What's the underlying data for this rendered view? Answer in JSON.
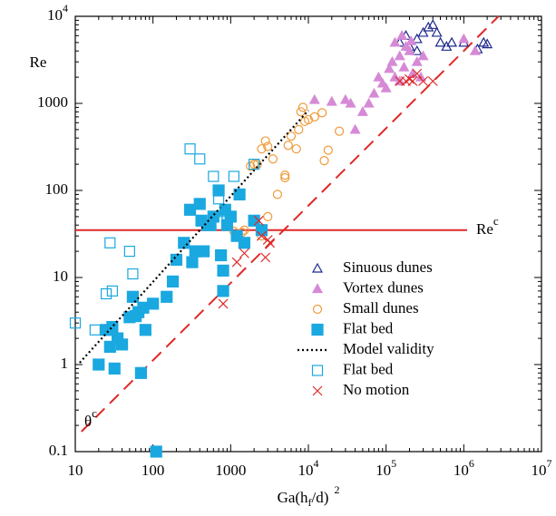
{
  "chart_data": {
    "type": "scatter",
    "x_label": {
      "base": "Ga(h",
      "sub": "f",
      "rest": "/d)",
      "sup": "2"
    },
    "y_label": "Re",
    "log_x": true,
    "log_y": true,
    "xlim": [
      10,
      10000000
    ],
    "ylim": [
      0.1,
      10000
    ],
    "xticks": [
      10,
      100,
      1000,
      {
        "value": 10000,
        "label": "10",
        "sup": "4"
      },
      {
        "value": 100000,
        "label": "10",
        "sup": "5"
      },
      {
        "value": 1000000,
        "label": "10",
        "sup": "6"
      },
      {
        "value": 10000000,
        "label": "10",
        "sup": "7"
      }
    ],
    "yticks": [
      0.1,
      1,
      10,
      100,
      1000,
      {
        "value": 10000,
        "label": "10",
        "sup": "4"
      }
    ],
    "series": [
      {
        "name": "Sinuous dunes",
        "color": "#1e2a8c",
        "marker": "open-triangle",
        "x": [
          150000,
          180000,
          200000,
          250000,
          300000,
          350000,
          400000,
          450000,
          500000,
          600000,
          700000,
          1000000,
          1500000,
          1800000,
          2000000,
          250000
        ],
        "values": [
          5000,
          6000,
          4500,
          5500,
          6500,
          7500,
          8000,
          6500,
          5000,
          4500,
          5000,
          5000,
          4200,
          5000,
          4800,
          4000
        ]
      },
      {
        "name": "Vortex dunes",
        "color": "#d68ad6",
        "marker": "filled-triangle",
        "x": [
          12000,
          30000,
          35000,
          20000,
          40000,
          50000,
          60000,
          70000,
          80000,
          100000,
          110000,
          120000,
          130000,
          150000,
          150000,
          170000,
          200000,
          220000,
          250000,
          300000,
          130000,
          160000,
          1400000,
          1000000,
          90000,
          280000,
          180000,
          210000
        ],
        "values": [
          1100,
          1100,
          1000,
          1050,
          500,
          800,
          1000,
          1300,
          2000,
          1500,
          2500,
          3000,
          2000,
          3500,
          1800,
          2600,
          4000,
          2200,
          3000,
          3500,
          5000,
          6000,
          4000,
          5500,
          1700,
          2000,
          4500,
          5200
        ]
      },
      {
        "name": "Small dunes",
        "color": "#f09a3a",
        "marker": "open-circle",
        "x": [
          1500,
          1800,
          2000,
          2200,
          2500,
          2800,
          3000,
          3500,
          4000,
          5000,
          5500,
          6000,
          7000,
          7500,
          8000,
          8500,
          9000,
          10000,
          12000,
          15000,
          16000,
          18000,
          25000,
          5000,
          3000,
          1100,
          1400,
          2500
        ],
        "values": [
          35,
          190,
          200,
          200,
          300,
          370,
          320,
          230,
          90,
          150,
          330,
          420,
          300,
          500,
          800,
          900,
          620,
          650,
          700,
          780,
          220,
          290,
          480,
          140,
          50,
          34,
          33,
          30
        ]
      },
      {
        "name": "Flat bed",
        "color": "#1aa8e0",
        "marker": "filled-square",
        "x": [
          20,
          25,
          28,
          30,
          32,
          35,
          40,
          50,
          55,
          60,
          65,
          70,
          75,
          80,
          100,
          110,
          150,
          180,
          200,
          250,
          300,
          320,
          350,
          400,
          420,
          450,
          500,
          550,
          600,
          700,
          750,
          800,
          800,
          850,
          900,
          1000,
          1200,
          1300,
          1500,
          2500,
          2000
        ],
        "values": [
          1,
          2.5,
          1.6,
          2.7,
          0.9,
          2,
          1.7,
          3.5,
          6,
          3.6,
          4,
          0.8,
          4.5,
          2.5,
          5,
          0.1,
          6,
          9,
          16,
          25,
          60,
          15,
          20,
          70,
          45,
          20,
          40,
          40,
          50,
          100,
          18,
          7,
          12,
          60,
          40,
          50,
          30,
          90,
          25,
          35,
          45
        ]
      },
      {
        "name": "Model validity",
        "color": "#000000",
        "marker": "dotted-line",
        "x": [
          11.4,
          10000
        ],
        "values": [
          1.05,
          830
        ]
      },
      {
        "name": "Flat bed",
        "color": "#1aa8e0",
        "marker": "open-square",
        "x": [
          10,
          18,
          28,
          25,
          30,
          50,
          55,
          300,
          400,
          600,
          850,
          900,
          1100,
          2000,
          700
        ],
        "values": [
          3,
          2.5,
          25,
          6.5,
          7,
          20,
          11,
          300,
          230,
          145,
          57,
          47,
          145,
          200,
          80
        ]
      },
      {
        "name": "No motion",
        "color": "#e02828",
        "marker": "cross",
        "x": [
          800,
          1200,
          1500,
          2300,
          2800,
          3000,
          3200,
          2500,
          150000,
          180000,
          200000,
          250000,
          300000,
          400000,
          220000
        ],
        "values": [
          5,
          15,
          19,
          45,
          17,
          27,
          25,
          30,
          1800,
          1800,
          1900,
          2200,
          1800,
          1800,
          1800
        ]
      }
    ],
    "threshold_lines": [
      {
        "label": "Re",
        "sup": "c",
        "color": "#e02828",
        "style": "solid",
        "value": 35
      },
      {
        "label": "θ",
        "sup": "c",
        "color": "#e02828",
        "style": "dashed",
        "x": [
          12,
          2800000
        ],
        "values": [
          0.17,
          10000
        ]
      }
    ]
  }
}
